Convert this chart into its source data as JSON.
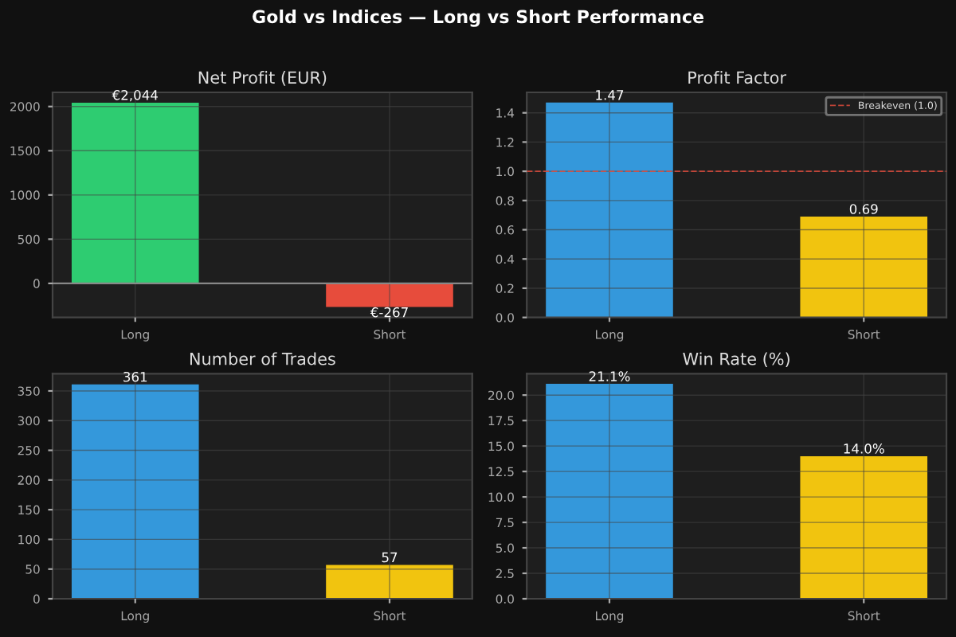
{
  "chart_data": [
    {
      "type": "bar",
      "title": "Net Profit (EUR)",
      "annotations": [
        "Gold vs Indices — Long vs Short Performance"
      ],
      "categories": [
        "Long",
        "Short"
      ],
      "values": [
        2044,
        -267
      ],
      "colors": [
        "#2ecc71",
        "#e74c3c"
      ],
      "value_labels": [
        "€2,044",
        "€-267"
      ],
      "ylim": [
        -385,
        2160
      ],
      "yticks": [
        0,
        500,
        1000,
        1500,
        2000
      ],
      "grid": true
    },
    {
      "type": "bar",
      "title": "Profit Factor",
      "categories": [
        "Long",
        "Short"
      ],
      "values": [
        1.47,
        0.69
      ],
      "colors": [
        "#3498db",
        "#f1c40f"
      ],
      "value_labels": [
        "1.47",
        "0.69"
      ],
      "ylim": [
        0,
        1.54
      ],
      "yticks": [
        {
          "value": 0,
          "label": "0.0"
        },
        0.2,
        0.4,
        0.6,
        0.8,
        {
          "value": 1,
          "label": "1.0"
        },
        1.2,
        1.4
      ],
      "grid": true,
      "ref_lines": [
        {
          "axis": "y",
          "value": 1.0,
          "label": "Breakeven (1.0)",
          "color": "#e74c3c",
          "line_style": "dashed"
        }
      ],
      "legend": "top right"
    },
    {
      "type": "bar",
      "title": "Number of Trades",
      "categories": [
        "Long",
        "Short"
      ],
      "values": [
        361,
        57
      ],
      "colors": [
        "#3498db",
        "#f1c40f"
      ],
      "value_labels": [
        "361",
        "57"
      ],
      "ylim": [
        0,
        379
      ],
      "yticks": [
        0,
        50,
        100,
        150,
        200,
        250,
        300,
        350
      ],
      "grid": true
    },
    {
      "type": "bar",
      "title": "Win Rate (%)",
      "categories": [
        "Long",
        "Short"
      ],
      "values": [
        21.1,
        14.0
      ],
      "colors": [
        "#3498db",
        "#f1c40f"
      ],
      "value_labels": [
        "21.1%",
        "14.0%"
      ],
      "ylim": [
        0,
        22.1
      ],
      "yticks": [
        {
          "value": 0,
          "label": "0.0"
        },
        2.5,
        {
          "value": 5,
          "label": "5.0"
        },
        7.5,
        {
          "value": 10,
          "label": "10.0"
        },
        12.5,
        {
          "value": 15,
          "label": "15.0"
        },
        17.5,
        {
          "value": 20,
          "label": "20.0"
        }
      ],
      "grid": true
    }
  ]
}
